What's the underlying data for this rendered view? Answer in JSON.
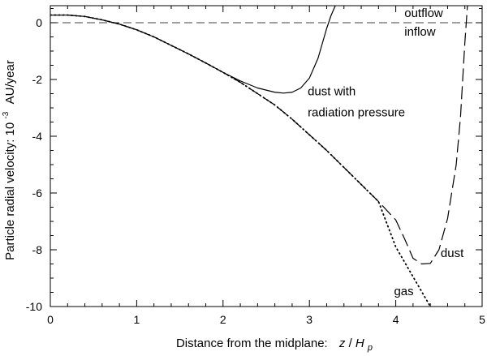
{
  "chart_data": {
    "type": "line",
    "title": "",
    "xlabel": "Distance from the midplane:",
    "xlabel_math": {
      "z": "z",
      "slash": "/",
      "H": "H",
      "sub": "p"
    },
    "ylabel": "Particle radial velocity: 10",
    "ylabel_exp": "-3",
    "ylabel_unit": "AU/year",
    "xlim": [
      0,
      5
    ],
    "ylim": [
      -10,
      0.6
    ],
    "xticks": [
      0,
      1,
      2,
      3,
      4,
      5
    ],
    "xtick_labels": [
      "0",
      "1",
      "2",
      "3",
      "4",
      "5"
    ],
    "yticks": [
      0,
      -2,
      -4,
      -6,
      -8,
      -10
    ],
    "ytick_labels": [
      "0",
      "-2",
      "-4",
      "-6",
      "-8",
      "-10"
    ],
    "reference_line": {
      "y": 0,
      "style": "dashed"
    },
    "annotations": [
      {
        "key": "outflow",
        "text": "outflow",
        "x": 4.1,
        "y": 0.2
      },
      {
        "key": "inflow",
        "text": "inflow",
        "x": 4.1,
        "y": -0.45
      },
      {
        "key": "dust_rp_1",
        "text": "dust with",
        "x": 2.98,
        "y": -2.55
      },
      {
        "key": "dust_rp_2",
        "text": "radiation pressure",
        "x": 2.98,
        "y": -3.3
      },
      {
        "key": "dust",
        "text": "dust",
        "x": 4.52,
        "y": -8.25
      },
      {
        "key": "gas",
        "text": "gas",
        "x": 3.98,
        "y": -9.6
      }
    ],
    "series": [
      {
        "name": "dust with radiation pressure",
        "style": "solid",
        "x": [
          0,
          0.2,
          0.4,
          0.6,
          0.8,
          1.0,
          1.2,
          1.4,
          1.6,
          1.8,
          2.0,
          2.2,
          2.4,
          2.6,
          2.7,
          2.8,
          2.9,
          3.0,
          3.1,
          3.2,
          3.25,
          3.3
        ],
        "y": [
          0.27,
          0.27,
          0.22,
          0.1,
          -0.05,
          -0.25,
          -0.5,
          -0.8,
          -1.1,
          -1.42,
          -1.75,
          -2.05,
          -2.3,
          -2.45,
          -2.48,
          -2.45,
          -2.3,
          -1.95,
          -1.25,
          -0.2,
          0.25,
          0.6
        ]
      },
      {
        "name": "dust",
        "style": "long-dash",
        "x": [
          0,
          0.2,
          0.4,
          0.6,
          0.8,
          1.0,
          1.2,
          1.4,
          1.6,
          1.8,
          2.0,
          2.2,
          2.4,
          2.6,
          2.8,
          3.0,
          3.2,
          3.4,
          3.6,
          3.8,
          4.0,
          4.1,
          4.2,
          4.3,
          4.4,
          4.5,
          4.6,
          4.7,
          4.75,
          4.8,
          4.83
        ],
        "y": [
          0.27,
          0.27,
          0.22,
          0.1,
          -0.05,
          -0.25,
          -0.5,
          -0.8,
          -1.1,
          -1.42,
          -1.75,
          -2.1,
          -2.5,
          -2.9,
          -3.4,
          -3.95,
          -4.5,
          -5.1,
          -5.7,
          -6.3,
          -6.95,
          -7.6,
          -8.3,
          -8.5,
          -8.48,
          -8.0,
          -6.9,
          -5.0,
          -3.3,
          -0.7,
          0.6
        ]
      },
      {
        "name": "gas",
        "style": "dotted",
        "x": [
          0,
          0.2,
          0.4,
          0.6,
          0.8,
          1.0,
          1.2,
          1.4,
          1.6,
          1.8,
          2.0,
          2.2,
          2.4,
          2.6,
          2.8,
          3.0,
          3.2,
          3.4,
          3.6,
          3.8,
          4.0,
          4.2,
          4.4
        ],
        "y": [
          0.27,
          0.27,
          0.22,
          0.1,
          -0.05,
          -0.25,
          -0.5,
          -0.8,
          -1.1,
          -1.42,
          -1.75,
          -2.1,
          -2.5,
          -2.9,
          -3.4,
          -3.95,
          -4.5,
          -5.1,
          -5.7,
          -6.3,
          -7.9,
          -8.95,
          -10.0
        ]
      }
    ]
  }
}
